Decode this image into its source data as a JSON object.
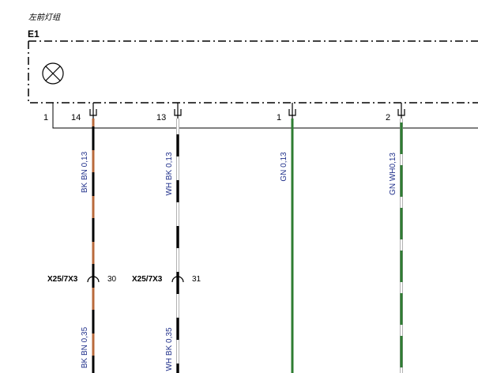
{
  "header": {
    "title": "左前灯组"
  },
  "component": {
    "id": "E1",
    "pin_label": "1"
  },
  "pins": [
    {
      "number": "14",
      "wire_top": "BK BN 0,13",
      "wire_bottom": "BK BN 0,35"
    },
    {
      "number": "13",
      "wire_top": "WH BK 0,13",
      "wire_bottom": "WH BK 0,35"
    },
    {
      "number": "1",
      "wire_top": "GN 0,13"
    },
    {
      "number": "2",
      "wire_top": "GN WH0,13"
    }
  ],
  "splices": [
    {
      "connector": "X25/7X3",
      "pin": "30"
    },
    {
      "connector": "X25/7X3",
      "pin": "31"
    }
  ]
}
